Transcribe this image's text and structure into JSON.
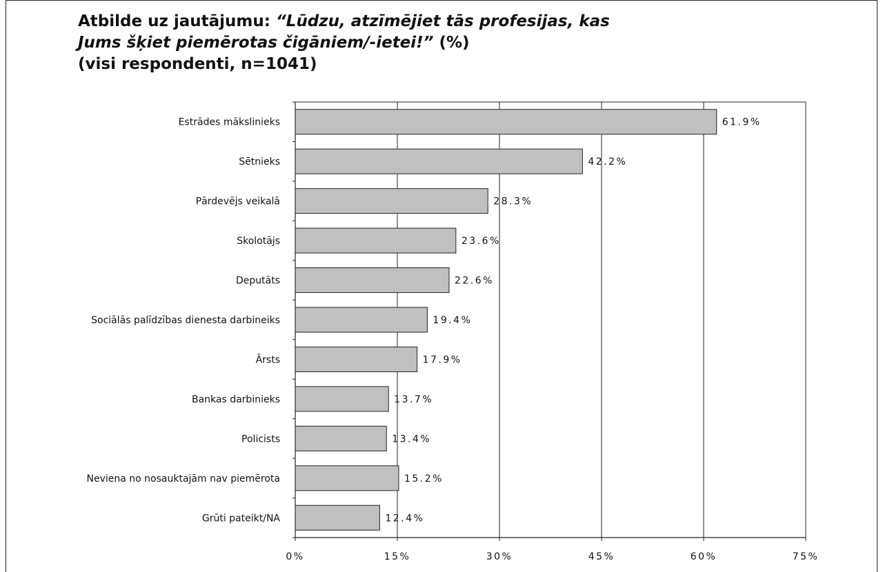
{
  "title": {
    "part1": "Atbilde uz jautājumu: ",
    "quote1": "“Lūdzu, atzīmējiet tās profesijas, kas",
    "quote2": "Jums šķiet piemērotas čigāniem/-ietei!”",
    "part2": " (%)",
    "subtitle": "(visi respondenti, n=1041)"
  },
  "chart_data": {
    "type": "bar",
    "orientation": "horizontal",
    "categories": [
      "Estrādes mākslinieks",
      "Sētnieks",
      "Pārdevējs veikalā",
      "Skolotājs",
      "Deputāts",
      "Sociālās palīdzības dienesta darbineiks",
      "Ārsts",
      "Bankas darbinieks",
      "Policists",
      "Neviena no nosauktajām nav piemērota",
      "Grūti pateikt/NA"
    ],
    "values": [
      61.9,
      42.2,
      28.3,
      23.6,
      22.6,
      19.4,
      17.9,
      13.7,
      13.4,
      15.2,
      12.4
    ],
    "value_labels": [
      "61.9%",
      "42.2%",
      "28.3%",
      "23.6%",
      "22.6%",
      "19.4%",
      "17.9%",
      "13.7%",
      "13.4%",
      "15.2%",
      "12.4%"
    ],
    "xlim": [
      0,
      75
    ],
    "xticks": [
      0,
      15,
      30,
      45,
      60,
      75
    ],
    "xtick_labels": [
      "0%",
      "15%",
      "30%",
      "45%",
      "60%",
      "75%"
    ],
    "grid": "vertical",
    "bar_color": "#c0c0c0",
    "bar_edge_color": "#222222"
  }
}
